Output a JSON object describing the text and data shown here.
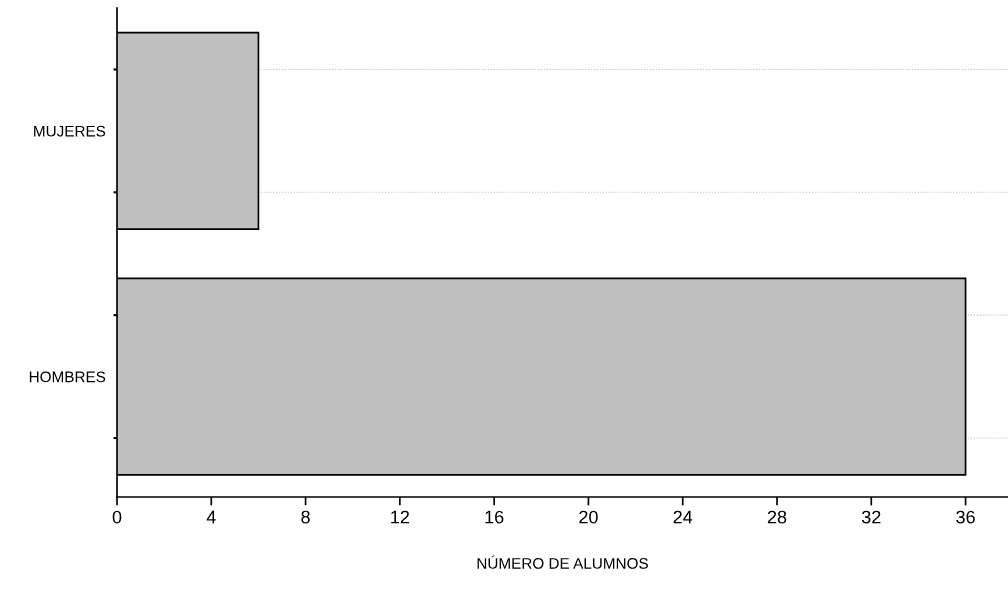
{
  "chart_data": {
    "type": "bar",
    "orientation": "horizontal",
    "xlabel": "NÚMERO DE ALUMNOS",
    "categories": [
      "MUJERES",
      "HOMBRES"
    ],
    "values": [
      6,
      36
    ],
    "color": "#c0c0c0",
    "xlim": [
      0,
      37.8
    ],
    "xticks": [
      0,
      4,
      8,
      12,
      16,
      20,
      24,
      28,
      32,
      36
    ],
    "grid": "y"
  }
}
